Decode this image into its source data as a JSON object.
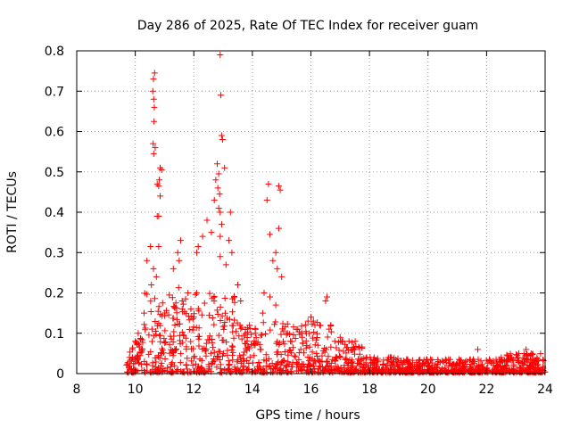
{
  "chart_data": {
    "type": "scatter",
    "title": "Day 286 of 2025, Rate Of TEC Index for receiver guam",
    "xlabel": "GPS time / hours",
    "ylabel": "ROTI / TECUs",
    "xlim": [
      8,
      24
    ],
    "ylim": [
      0,
      0.8
    ],
    "x_ticks": [
      "8",
      "10",
      "12",
      "14",
      "16",
      "18",
      "20",
      "22",
      "24"
    ],
    "y_ticks": [
      "0",
      "0.1",
      "0.2",
      "0.3",
      "0.4",
      "0.5",
      "0.6",
      "0.7",
      "0.8"
    ],
    "grid": true,
    "marker": "+",
    "color": "#ff0000",
    "series": [
      {
        "name": "ROTI",
        "points": [
          [
            10.62,
            0.73
          ],
          [
            10.66,
            0.745
          ],
          [
            10.6,
            0.7
          ],
          [
            10.63,
            0.68
          ],
          [
            10.65,
            0.66
          ],
          [
            10.64,
            0.625
          ],
          [
            10.61,
            0.57
          ],
          [
            10.68,
            0.56
          ],
          [
            10.63,
            0.545
          ],
          [
            10.85,
            0.51
          ],
          [
            10.9,
            0.505
          ],
          [
            10.82,
            0.48
          ],
          [
            10.75,
            0.47
          ],
          [
            10.8,
            0.465
          ],
          [
            10.85,
            0.44
          ],
          [
            10.75,
            0.39
          ],
          [
            10.8,
            0.39
          ],
          [
            10.52,
            0.315
          ],
          [
            10.8,
            0.315
          ],
          [
            10.4,
            0.28
          ],
          [
            10.62,
            0.26
          ],
          [
            10.72,
            0.24
          ],
          [
            10.55,
            0.22
          ],
          [
            12.9,
            0.79
          ],
          [
            12.92,
            0.69
          ],
          [
            12.95,
            0.59
          ],
          [
            12.98,
            0.58
          ],
          [
            13.05,
            0.51
          ],
          [
            12.8,
            0.52
          ],
          [
            12.85,
            0.495
          ],
          [
            12.75,
            0.48
          ],
          [
            12.82,
            0.46
          ],
          [
            12.88,
            0.445
          ],
          [
            12.7,
            0.43
          ],
          [
            12.85,
            0.41
          ],
          [
            12.9,
            0.4
          ],
          [
            13.25,
            0.4
          ],
          [
            12.45,
            0.38
          ],
          [
            12.95,
            0.37
          ],
          [
            12.6,
            0.35
          ],
          [
            12.9,
            0.34
          ],
          [
            12.3,
            0.34
          ],
          [
            13.2,
            0.33
          ],
          [
            12.15,
            0.315
          ],
          [
            11.55,
            0.33
          ],
          [
            13.3,
            0.3
          ],
          [
            12.1,
            0.3
          ],
          [
            12.9,
            0.29
          ],
          [
            11.45,
            0.3
          ],
          [
            11.5,
            0.28
          ],
          [
            13.1,
            0.27
          ],
          [
            11.3,
            0.26
          ],
          [
            14.55,
            0.47
          ],
          [
            14.5,
            0.43
          ],
          [
            14.9,
            0.465
          ],
          [
            14.95,
            0.455
          ],
          [
            14.9,
            0.36
          ],
          [
            14.6,
            0.345
          ],
          [
            14.8,
            0.3
          ],
          [
            14.7,
            0.28
          ],
          [
            14.85,
            0.26
          ],
          [
            15.0,
            0.24
          ],
          [
            14.4,
            0.2
          ],
          [
            14.35,
            0.15
          ],
          [
            14.8,
            0.17
          ],
          [
            14.6,
            0.19
          ],
          [
            16.55,
            0.19
          ],
          [
            16.5,
            0.18
          ],
          [
            16.0,
            0.14
          ],
          [
            15.9,
            0.13
          ],
          [
            16.3,
            0.12
          ],
          [
            15.5,
            0.11
          ],
          [
            15.7,
            0.09
          ],
          [
            17.0,
            0.09
          ],
          [
            17.3,
            0.08
          ],
          [
            17.5,
            0.06
          ],
          [
            21.7,
            0.06
          ],
          [
            23.35,
            0.06
          ],
          [
            23.1,
            0.05
          ],
          [
            22.5,
            0.04
          ],
          [
            20.7,
            0.035
          ],
          [
            11.8,
            0.2
          ],
          [
            11.9,
            0.16
          ],
          [
            12.0,
            0.14
          ],
          [
            11.6,
            0.18
          ],
          [
            10.3,
            0.15
          ],
          [
            10.1,
            0.1
          ],
          [
            10.0,
            0.08
          ],
          [
            9.9,
            0.06
          ],
          [
            9.8,
            0.04
          ],
          [
            13.5,
            0.22
          ],
          [
            13.6,
            0.18
          ],
          [
            13.9,
            0.12
          ],
          [
            14.1,
            0.1
          ],
          [
            15.2,
            0.1
          ],
          [
            15.3,
            0.08
          ]
        ]
      }
    ]
  }
}
